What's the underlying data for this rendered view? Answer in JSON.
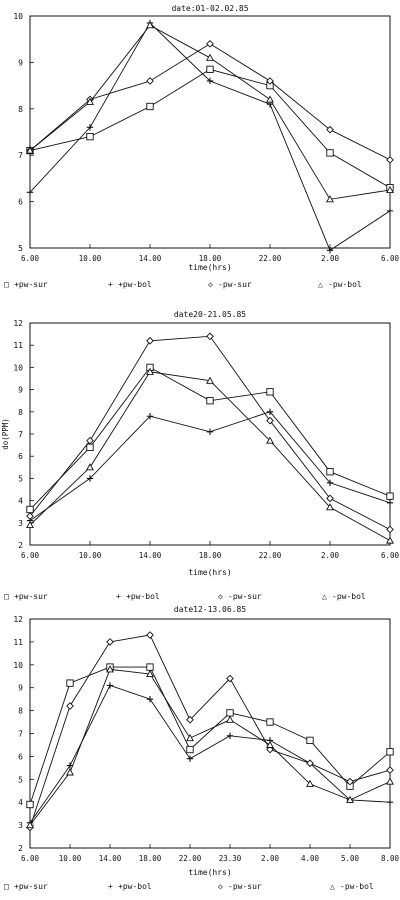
{
  "colors": {
    "ink": "#111111",
    "paper": "#ffffff"
  },
  "legend_items": [
    {
      "marker": "square",
      "label": "+pw-sur"
    },
    {
      "marker": "plus",
      "label": "+pw-bol"
    },
    {
      "marker": "diamond",
      "label": "-pw-sur"
    },
    {
      "marker": "triangle",
      "label": "-pw-bol"
    }
  ],
  "chart_data": [
    {
      "type": "line",
      "title": "date:01-02.02.85",
      "xlabel": "time(hrs)",
      "ylabel": "",
      "categories": [
        "6.00",
        "10.00",
        "14.00",
        "18.00",
        "22.00",
        "2.00",
        "6.00"
      ],
      "ylim": [
        5,
        10
      ],
      "yticks": [
        5,
        6,
        7,
        8,
        9,
        10
      ],
      "series": [
        {
          "name": "+pw-sur",
          "marker": "square",
          "values": [
            7.1,
            7.4,
            8.05,
            8.85,
            8.5,
            7.05,
            6.3
          ]
        },
        {
          "name": "+pw-bol",
          "marker": "plus",
          "values": [
            6.2,
            7.6,
            9.85,
            8.6,
            8.1,
            4.95,
            5.8
          ]
        },
        {
          "name": "-pw-sur",
          "marker": "diamond",
          "values": [
            7.1,
            8.2,
            8.6,
            9.4,
            8.6,
            7.55,
            6.9
          ]
        },
        {
          "name": "-pw-bol",
          "marker": "triangle",
          "values": [
            7.1,
            8.15,
            9.8,
            9.1,
            8.2,
            6.05,
            6.25
          ]
        }
      ]
    },
    {
      "type": "line",
      "title": "date20-21.05.85",
      "xlabel": "time(hrs)",
      "ylabel": "do(PPM)",
      "categories": [
        "6.00",
        "10.00",
        "14.00",
        "18.00",
        "22.00",
        "2.00",
        "6.00"
      ],
      "ylim": [
        2,
        12
      ],
      "yticks": [
        2,
        3,
        4,
        5,
        6,
        7,
        8,
        9,
        10,
        11,
        12
      ],
      "series": [
        {
          "name": "+pw-sur",
          "marker": "square",
          "values": [
            3.6,
            6.4,
            10.0,
            8.5,
            8.9,
            5.3,
            4.2
          ]
        },
        {
          "name": "+pw-bol",
          "marker": "plus",
          "values": [
            3.1,
            5.0,
            7.8,
            7.1,
            8.0,
            4.8,
            3.9
          ]
        },
        {
          "name": "-pw-sur",
          "marker": "diamond",
          "values": [
            3.3,
            6.7,
            11.2,
            11.4,
            7.6,
            4.1,
            2.7
          ]
        },
        {
          "name": "-pw-bol",
          "marker": "triangle",
          "values": [
            2.9,
            5.5,
            9.8,
            9.4,
            6.7,
            3.7,
            2.2
          ]
        }
      ]
    },
    {
      "type": "line",
      "title": "date12-13.06.85",
      "xlabel": "time(hrs)",
      "ylabel": "",
      "categories": [
        "6.00",
        "10.00",
        "14.00",
        "18.00",
        "22.00",
        "23.30",
        "2.00",
        "4.00",
        "5.00",
        "8.00"
      ],
      "ylim": [
        2,
        12
      ],
      "yticks": [
        2,
        3,
        4,
        5,
        6,
        7,
        8,
        9,
        10,
        11,
        12
      ],
      "series": [
        {
          "name": "+pw-sur",
          "marker": "square",
          "values": [
            3.9,
            9.2,
            9.9,
            9.9,
            6.3,
            7.9,
            7.5,
            6.7,
            4.7,
            6.2
          ]
        },
        {
          "name": "+pw-bol",
          "marker": "plus",
          "values": [
            3.1,
            5.6,
            9.1,
            8.5,
            5.9,
            6.9,
            6.7,
            5.7,
            4.1,
            4.0
          ]
        },
        {
          "name": "-pw-sur",
          "marker": "diamond",
          "values": [
            2.9,
            8.2,
            11.0,
            11.3,
            7.6,
            9.4,
            6.3,
            5.7,
            4.9,
            5.4
          ]
        },
        {
          "name": "-pw-bol",
          "marker": "triangle",
          "values": [
            3.0,
            5.3,
            9.8,
            9.6,
            6.8,
            7.6,
            6.5,
            4.8,
            4.1,
            4.9
          ]
        }
      ]
    }
  ]
}
